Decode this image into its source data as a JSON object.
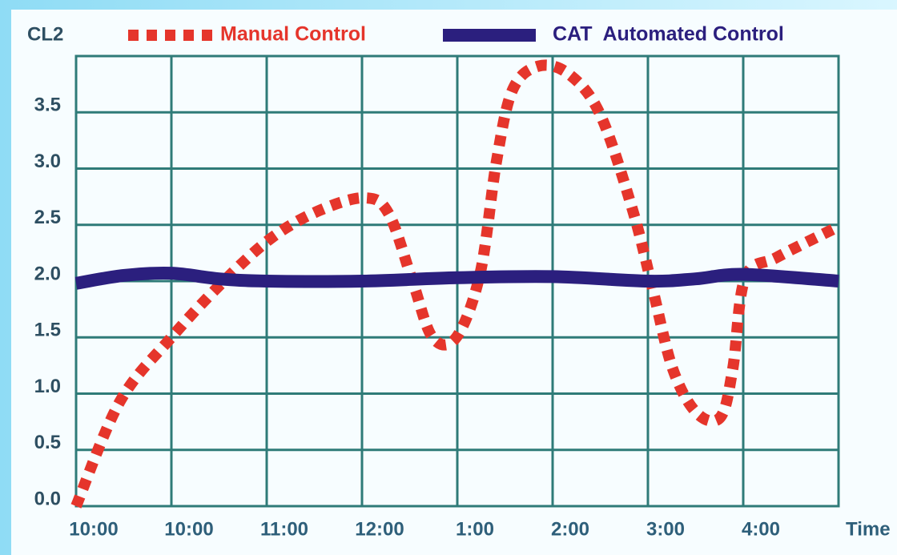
{
  "chart_data": {
    "type": "line",
    "y_label": "CL2",
    "x_label": "Time",
    "xlim": [
      0,
      8
    ],
    "xticks": [
      {
        "value": 0,
        "label": "10:00"
      },
      {
        "value": 1,
        "label": "10:00"
      },
      {
        "value": 2,
        "label": "11:00"
      },
      {
        "value": 3,
        "label": "12:00"
      },
      {
        "value": 4,
        "label": "1:00"
      },
      {
        "value": 5,
        "label": "2:00"
      },
      {
        "value": 6,
        "label": "3:00"
      },
      {
        "value": 7,
        "label": "4:00"
      }
    ],
    "ylim": [
      0,
      4
    ],
    "yticks": [
      {
        "value": 0,
        "label": "0.0"
      },
      {
        "value": 0.5,
        "label": "0.5"
      },
      {
        "value": 1,
        "label": "1.0"
      },
      {
        "value": 1.5,
        "label": "1.5"
      },
      {
        "value": 2,
        "label": "2.0"
      },
      {
        "value": 2.5,
        "label": "2.5"
      },
      {
        "value": 3,
        "label": "3.0"
      },
      {
        "value": 3.5,
        "label": "3.5"
      }
    ],
    "grid": true,
    "series": [
      {
        "name": "Manual Control",
        "color": "#e5352b",
        "style": "dotted",
        "x": [
          0,
          0.46,
          1,
          1.55,
          2.06,
          2.56,
          3.03,
          3.28,
          3.53,
          3.74,
          3.99,
          4.24,
          4.41,
          4.58,
          4.85,
          5.17,
          5.5,
          5.84,
          6.05,
          6.26,
          6.51,
          6.76,
          6.89,
          7.02,
          7.35,
          7.94
        ],
        "values": [
          0,
          0.93,
          1.5,
          2.0,
          2.39,
          2.63,
          2.74,
          2.6,
          2.0,
          1.5,
          1.5,
          2.07,
          3.06,
          3.7,
          3.91,
          3.84,
          3.48,
          2.63,
          1.93,
          1.22,
          0.83,
          0.79,
          1.22,
          2.03,
          2.21,
          2.46
        ]
      },
      {
        "name": "CAT  Automated Control",
        "color": "#2b1f7e",
        "style": "solid",
        "x": [
          0,
          0.5,
          1,
          1.5,
          2,
          3,
          4,
          5,
          6,
          6.5,
          7,
          8
        ],
        "values": [
          1.98,
          2.05,
          2.07,
          2.02,
          2.0,
          2.0,
          2.03,
          2.04,
          2.0,
          2.02,
          2.06,
          2.0
        ]
      }
    ]
  }
}
